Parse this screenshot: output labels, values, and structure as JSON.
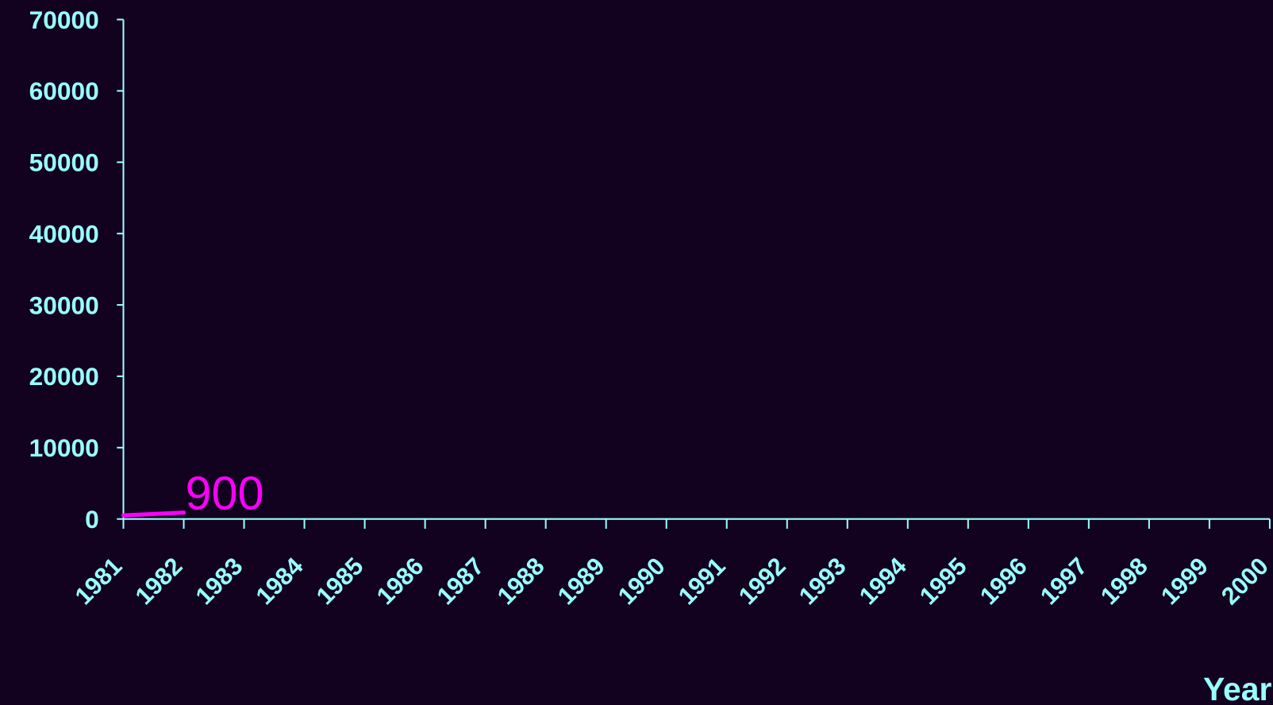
{
  "chart_data": {
    "type": "line",
    "x_label": "Year",
    "categories": [
      "1981",
      "1982",
      "1983",
      "1984",
      "1985",
      "1986",
      "1987",
      "1988",
      "1989",
      "1990",
      "1991",
      "1992",
      "1993",
      "1994",
      "1995",
      "1996",
      "1997",
      "1998",
      "1999",
      "2000"
    ],
    "values": [
      500,
      900,
      null,
      null,
      null,
      null,
      null,
      null,
      null,
      null,
      null,
      null,
      null,
      null,
      null,
      null,
      null,
      null,
      null,
      null
    ],
    "color": "#ff00ff",
    "label_index": 1,
    "ylim": [
      0,
      70000
    ],
    "yticks": [
      0,
      10000,
      20000,
      30000,
      40000,
      50000,
      60000,
      70000
    ]
  }
}
